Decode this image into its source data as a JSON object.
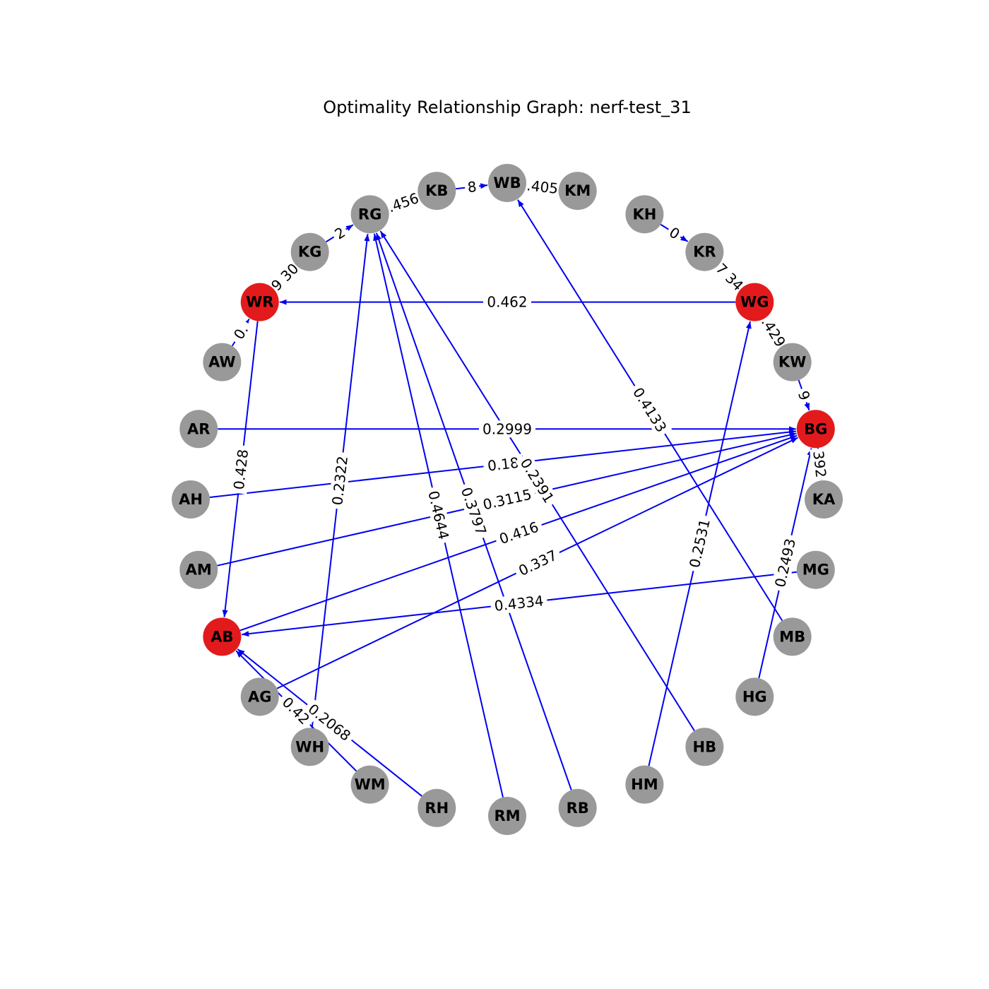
{
  "title": "Optimality Relationship Graph: nerf-test_31",
  "colors": {
    "edge": "#0000ee",
    "node_default": "#999999",
    "node_highlight": "#e31a1c",
    "label_text": "#000000",
    "background": "#ffffff"
  },
  "nodes": [
    {
      "id": "WB",
      "highlight": false
    },
    {
      "id": "KM",
      "highlight": false
    },
    {
      "id": "KH",
      "highlight": false
    },
    {
      "id": "KR",
      "highlight": false
    },
    {
      "id": "WG",
      "highlight": true
    },
    {
      "id": "KW",
      "highlight": false
    },
    {
      "id": "BG",
      "highlight": true
    },
    {
      "id": "KA",
      "highlight": false
    },
    {
      "id": "MG",
      "highlight": false
    },
    {
      "id": "MB",
      "highlight": false
    },
    {
      "id": "HG",
      "highlight": false
    },
    {
      "id": "HB",
      "highlight": false
    },
    {
      "id": "HM",
      "highlight": false
    },
    {
      "id": "RB",
      "highlight": false
    },
    {
      "id": "RM",
      "highlight": false
    },
    {
      "id": "RH",
      "highlight": false
    },
    {
      "id": "WM",
      "highlight": false
    },
    {
      "id": "WH",
      "highlight": false
    },
    {
      "id": "AG",
      "highlight": false
    },
    {
      "id": "AB",
      "highlight": true
    },
    {
      "id": "AM",
      "highlight": false
    },
    {
      "id": "AH",
      "highlight": false
    },
    {
      "id": "AR",
      "highlight": false
    },
    {
      "id": "AW",
      "highlight": false
    },
    {
      "id": "WR",
      "highlight": true
    },
    {
      "id": "KG",
      "highlight": false
    },
    {
      "id": "RG",
      "highlight": false
    },
    {
      "id": "KB",
      "highlight": false
    }
  ],
  "edges": [
    {
      "source": "WG",
      "target": "WR",
      "label": "0.462"
    },
    {
      "source": "WR",
      "target": "AB",
      "label": "0.428"
    },
    {
      "source": "AR",
      "target": "BG",
      "label": "0.2999"
    },
    {
      "source": "AH",
      "target": "BG",
      "label": "0.18"
    },
    {
      "source": "AM",
      "target": "BG",
      "label": "0.3115"
    },
    {
      "source": "AB",
      "target": "BG",
      "label": "0.416"
    },
    {
      "source": "AG",
      "target": "BG",
      "label": "0.337"
    },
    {
      "source": "MG",
      "target": "AB",
      "label": "0.4334"
    },
    {
      "source": "MB",
      "target": "WB",
      "label": "0.4133"
    },
    {
      "source": "HM",
      "target": "WG",
      "label": "0.2531"
    },
    {
      "source": "HG",
      "target": "BG",
      "label": "0.2493"
    },
    {
      "source": "HB",
      "target": "RG",
      "label": "0.2391"
    },
    {
      "source": "RB",
      "target": "RG",
      "label": "0.3797"
    },
    {
      "source": "RM",
      "target": "RG",
      "label": "0.4644"
    },
    {
      "source": "WH",
      "target": "RG",
      "label": "0.2322"
    },
    {
      "source": "RH",
      "target": "AB",
      "label": "0.2068"
    },
    {
      "source": "WM",
      "target": "AB",
      "label": "0.42"
    },
    {
      "source": "KB",
      "target": "WB",
      "label": "8"
    },
    {
      "source": "KM",
      "target": "WB",
      "label": ".405"
    },
    {
      "source": "RG",
      "target": "KB",
      "label": ".456"
    },
    {
      "source": "KG",
      "target": "RG",
      "label": "2"
    },
    {
      "source": "WR",
      "target": "KG",
      "label": "9 30"
    },
    {
      "source": "AW",
      "target": "WR",
      "label": "0."
    },
    {
      "source": "KH",
      "target": "KR",
      "label": "0"
    },
    {
      "source": "KR",
      "target": "WG",
      "label": "7 34"
    },
    {
      "source": "WG",
      "target": "KW",
      "label": ".429"
    },
    {
      "source": "KW",
      "target": "BG",
      "label": "9"
    },
    {
      "source": "BG",
      "target": "KA",
      "label": "392"
    }
  ]
}
